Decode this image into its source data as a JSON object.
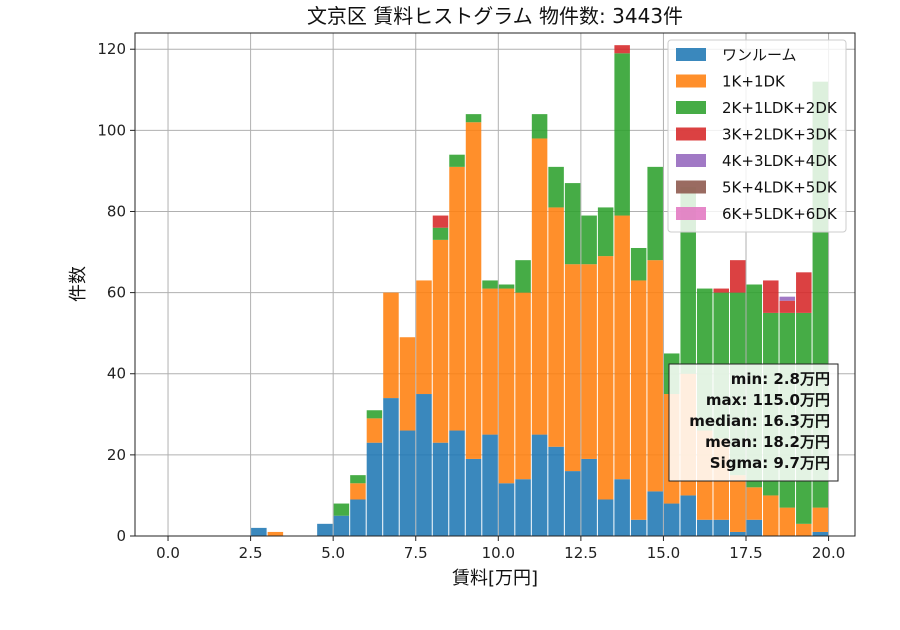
{
  "chart_data": {
    "type": "bar",
    "stacked": true,
    "title": "文京区 賃料ヒストグラム 物件数: 3443件",
    "xlabel": "賃料[万円]",
    "ylabel": "件数",
    "xlim": [
      -1.0,
      20.8
    ],
    "ylim": [
      0,
      124
    ],
    "xticks": [
      0.0,
      2.5,
      5.0,
      7.5,
      10.0,
      12.5,
      15.0,
      17.5,
      20.0
    ],
    "xtick_labels": [
      "0.0",
      "2.5",
      "5.0",
      "7.5",
      "10.0",
      "12.5",
      "15.0",
      "17.5",
      "20.0"
    ],
    "yticks": [
      0,
      20,
      40,
      60,
      80,
      100,
      120
    ],
    "ytick_labels": [
      "0",
      "20",
      "40",
      "60",
      "80",
      "100",
      "120"
    ],
    "grid": true,
    "legend_position": "top-right",
    "bin_width": 0.5,
    "bins": [
      2.5,
      3.0,
      3.5,
      4.0,
      4.5,
      5.0,
      5.5,
      6.0,
      6.5,
      7.0,
      7.5,
      8.0,
      8.5,
      9.0,
      9.5,
      10.0,
      10.5,
      11.0,
      11.5,
      12.0,
      12.5,
      13.0,
      13.5,
      14.0,
      14.5,
      15.0,
      15.5,
      16.0,
      16.5,
      17.0,
      17.5,
      18.0,
      18.5,
      19.0,
      19.5
    ],
    "series": [
      {
        "name": "ワンルーム",
        "color": "#1f77b4",
        "values": [
          2,
          0,
          0,
          0,
          3,
          5,
          9,
          23,
          34,
          26,
          35,
          23,
          26,
          19,
          25,
          13,
          14,
          25,
          22,
          16,
          19,
          9,
          14,
          4,
          11,
          8,
          10,
          4,
          4,
          1,
          4,
          0,
          0,
          0,
          1
        ]
      },
      {
        "name": "1K+1DK",
        "color": "#ff7f0e",
        "values": [
          0,
          1,
          0,
          0,
          0,
          0,
          4,
          6,
          26,
          23,
          28,
          50,
          65,
          83,
          36,
          48,
          46,
          73,
          59,
          51,
          48,
          60,
          65,
          59,
          57,
          27,
          30,
          22,
          20,
          14,
          8,
          10,
          7,
          3,
          6
        ]
      },
      {
        "name": "2K+1LDK+2DK",
        "color": "#2ca02c",
        "values": [
          0,
          0,
          0,
          0,
          0,
          3,
          2,
          2,
          0,
          0,
          0,
          3,
          3,
          2,
          2,
          1,
          8,
          6,
          10,
          20,
          12,
          12,
          40,
          8,
          23,
          10,
          46,
          35,
          36,
          45,
          50,
          45,
          48,
          52,
          105
        ]
      },
      {
        "name": "3K+2LDK+3DK",
        "color": "#d62728",
        "values": [
          0,
          0,
          0,
          0,
          0,
          0,
          0,
          0,
          0,
          0,
          0,
          3,
          0,
          0,
          0,
          0,
          0,
          0,
          0,
          0,
          0,
          0,
          2,
          0,
          0,
          0,
          0,
          0,
          1,
          8,
          0,
          8,
          3,
          10,
          0
        ]
      },
      {
        "name": "4K+3LDK+4DK",
        "color": "#9467bd",
        "values": [
          0,
          0,
          0,
          0,
          0,
          0,
          0,
          0,
          0,
          0,
          0,
          0,
          0,
          0,
          0,
          0,
          0,
          0,
          0,
          0,
          0,
          0,
          0,
          0,
          0,
          0,
          0,
          0,
          0,
          0,
          0,
          0,
          1,
          0,
          0
        ]
      },
      {
        "name": "5K+4LDK+5DK",
        "color": "#8c564b",
        "values": [
          0,
          0,
          0,
          0,
          0,
          0,
          0,
          0,
          0,
          0,
          0,
          0,
          0,
          0,
          0,
          0,
          0,
          0,
          0,
          0,
          0,
          0,
          0,
          0,
          0,
          0,
          0,
          0,
          0,
          0,
          0,
          0,
          0,
          0,
          0
        ]
      },
      {
        "name": "6K+5LDK+6DK",
        "color": "#e377c2",
        "values": [
          0,
          0,
          0,
          0,
          0,
          0,
          0,
          0,
          0,
          0,
          0,
          0,
          0,
          0,
          0,
          0,
          0,
          0,
          0,
          0,
          0,
          0,
          0,
          0,
          0,
          0,
          0,
          0,
          0,
          0,
          0,
          0,
          0,
          0,
          0
        ]
      }
    ],
    "stats_box": [
      "min: 2.8万円",
      "max: 115.0万円",
      "median: 16.3万円",
      "mean: 18.2万円",
      "Sigma: 9.7万円"
    ]
  }
}
